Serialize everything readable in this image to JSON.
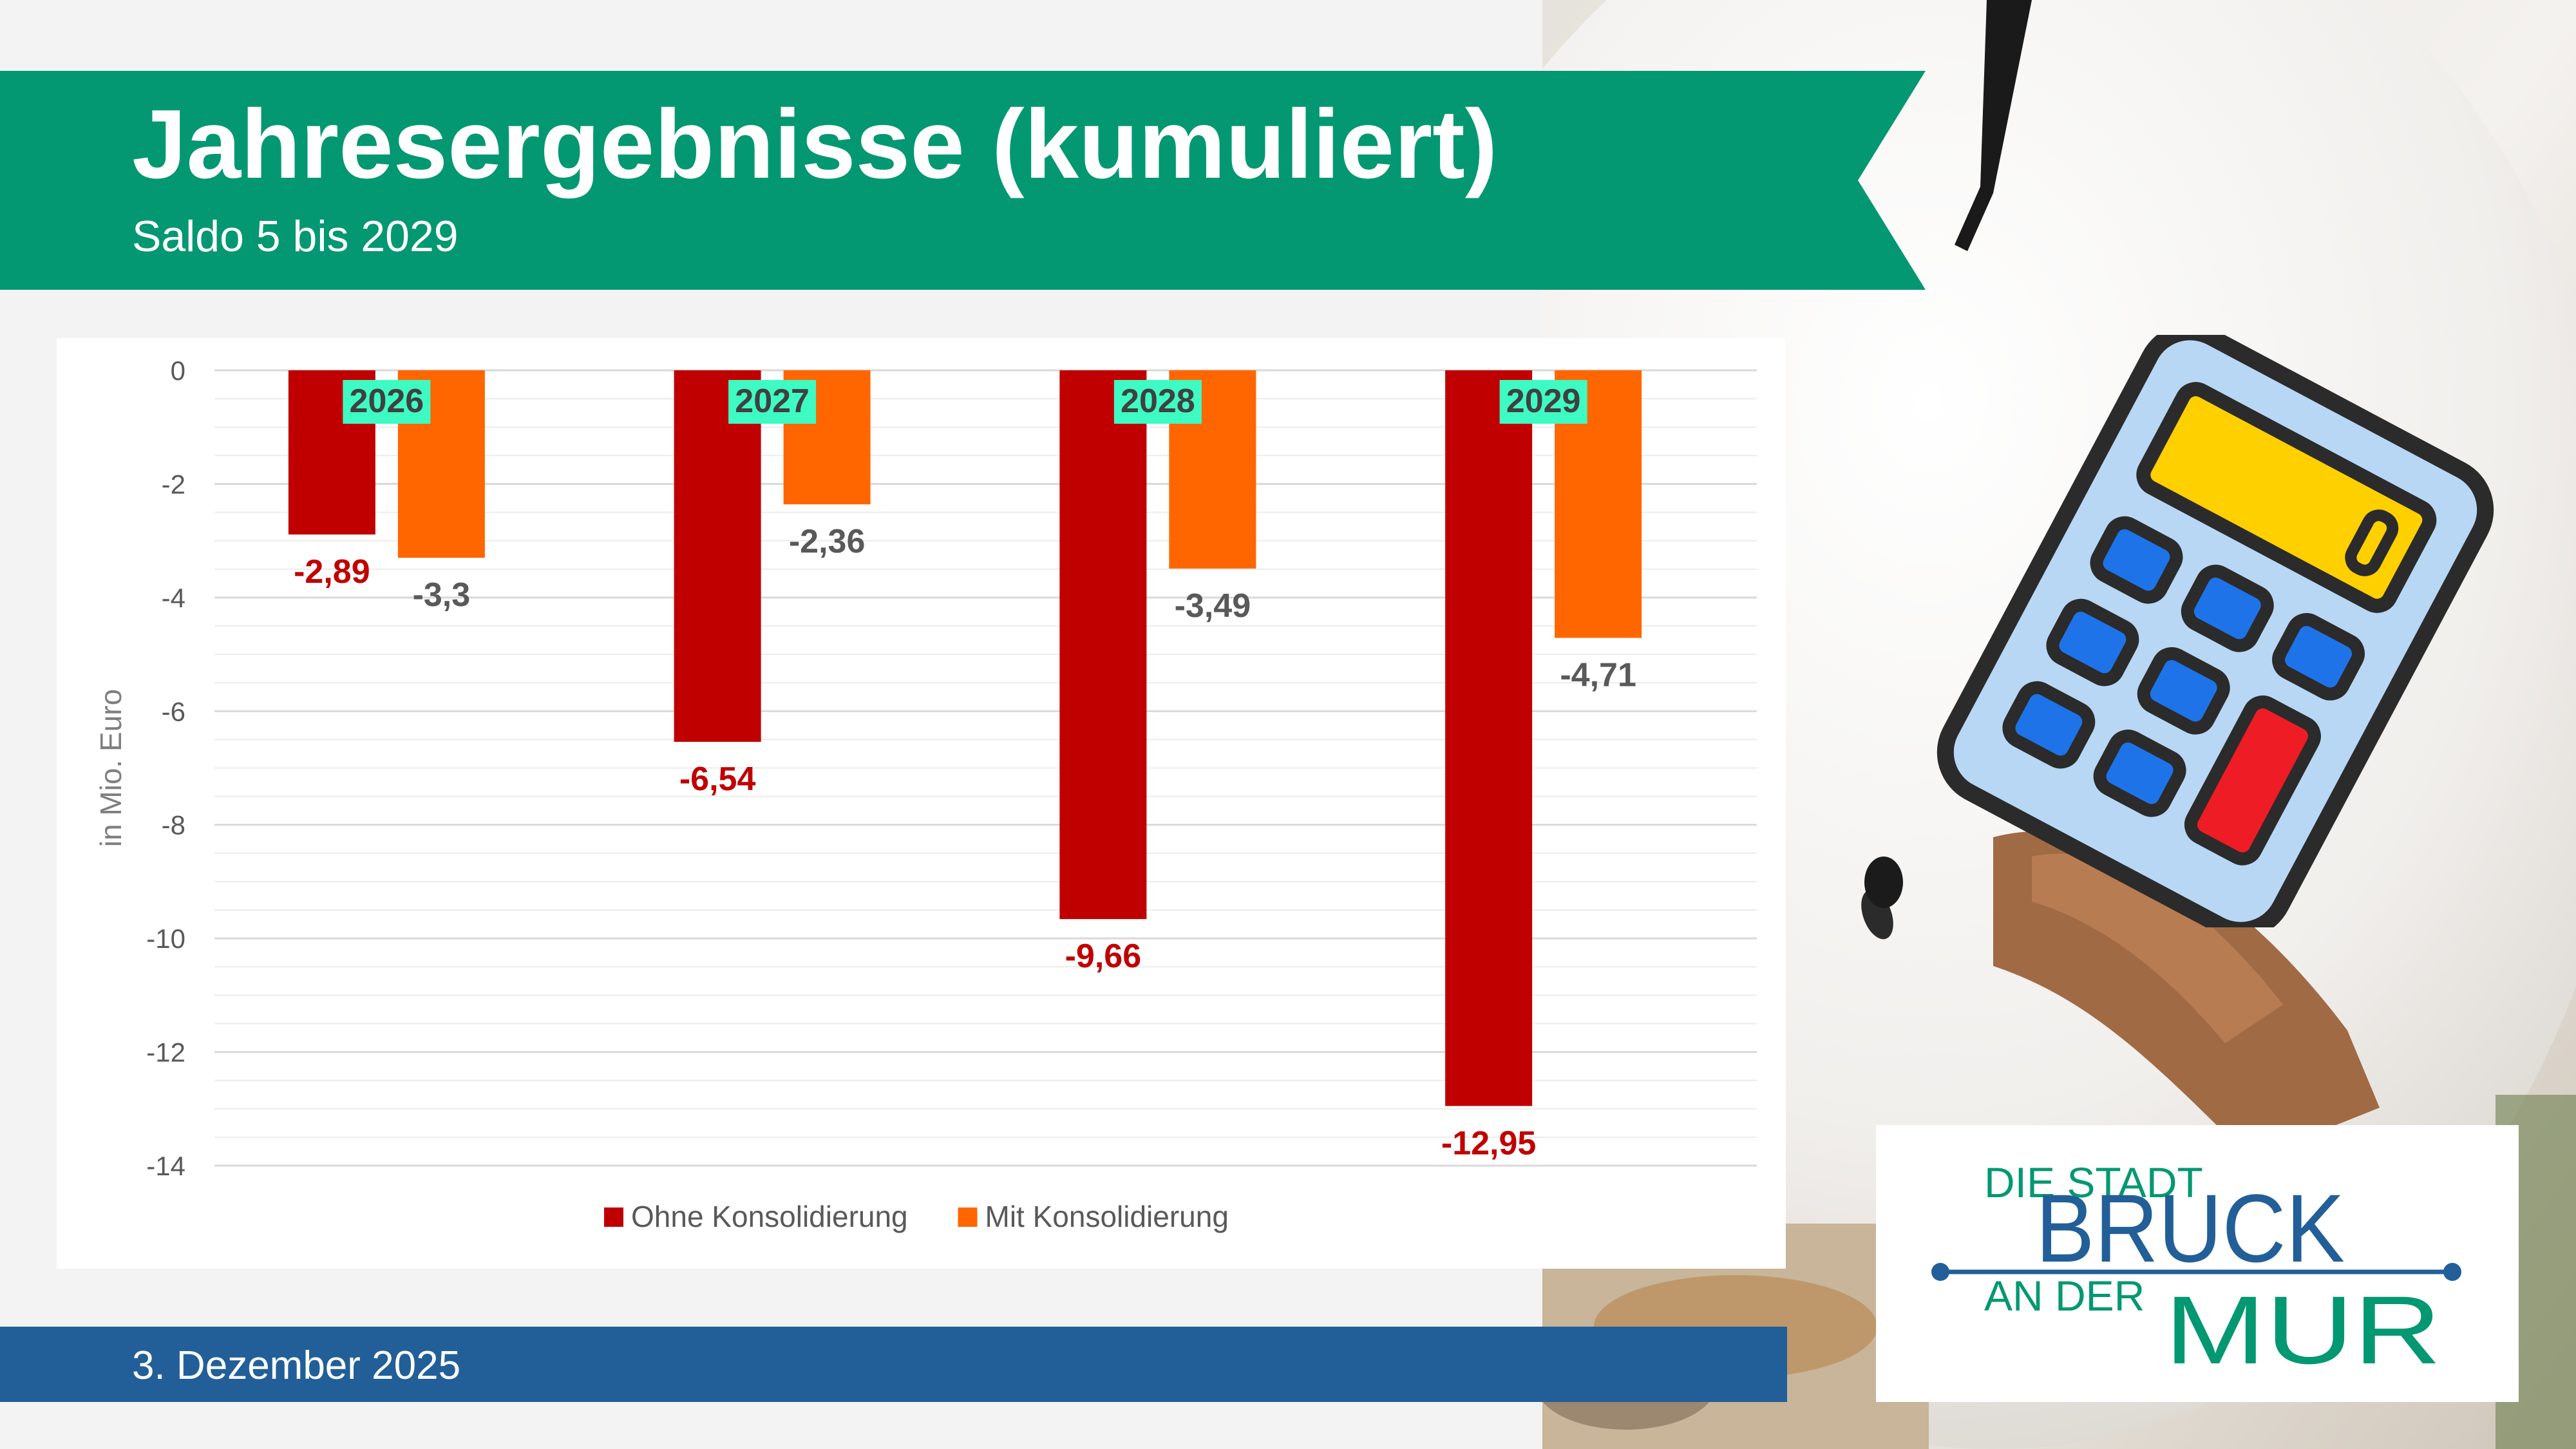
{
  "header": {
    "title": "Jahresergebnisse (kumuliert)",
    "subtitle": "Saldo 5 bis 2029"
  },
  "footer": {
    "date": "3. Dezember 2025"
  },
  "logo": {
    "line1": "DIE STADT",
    "line2": "BRUCK",
    "line3": "AN DER",
    "line4": "MUR"
  },
  "colors": {
    "banner_green": "#039871",
    "footer_blue": "#225f98",
    "ohne": "#c00000",
    "mit": "#ff6600",
    "year_label_bg": "#3dfbc3"
  },
  "chart_data": {
    "type": "bar",
    "categories": [
      "2026",
      "2027",
      "2028",
      "2029"
    ],
    "series": [
      {
        "name": "Ohne Konsolidierung",
        "values": [
          -2.89,
          -6.54,
          -9.66,
          -12.95
        ],
        "labels": [
          "-2,89",
          "-6,54",
          "-9,66",
          "-12,95"
        ]
      },
      {
        "name": "Mit Konsolidierung",
        "values": [
          -3.3,
          -2.36,
          -3.49,
          -4.71
        ],
        "labels": [
          "-3,3",
          "-2,36",
          "-3,49",
          "-4,71"
        ]
      }
    ],
    "ylabel": "in Mio. Euro",
    "ylim": [
      -14,
      0
    ],
    "yticks": [
      "0",
      "-2",
      "-4",
      "-6",
      "-8",
      "-10",
      "-12",
      "-14"
    ],
    "legend_position": "bottom",
    "grid": true
  }
}
